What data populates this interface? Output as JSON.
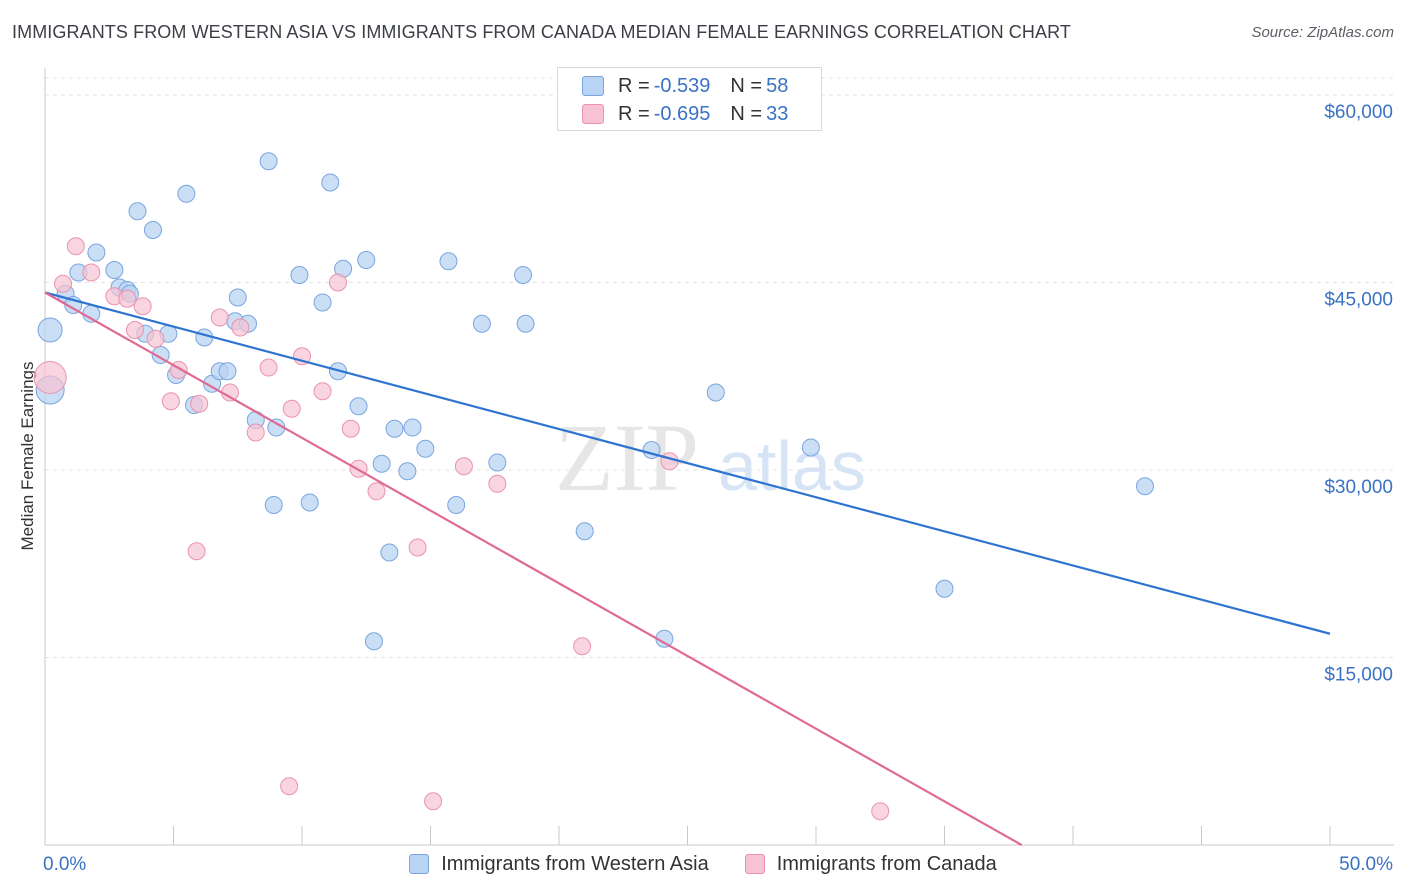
{
  "title": "IMMIGRANTS FROM WESTERN ASIA VS IMMIGRANTS FROM CANADA MEDIAN FEMALE EARNINGS CORRELATION CHART",
  "source": "Source: ZipAtlas.com",
  "watermark": {
    "zip": "ZIP",
    "atlas": "atlas"
  },
  "colors": {
    "blue_fill": "#b8d3f3",
    "blue_stroke": "#7aa6de",
    "blue_line": "#2f74d0",
    "pink_fill": "#f7c3d3",
    "pink_stroke": "#ea93b0",
    "pink_line": "#e06a94",
    "axis_label": "#3a72c4",
    "grid": "#e3e3e3"
  },
  "legend_top": [
    {
      "r_label": "R =",
      "r_value": "-0.539",
      "n_label": "N =",
      "n_value": "58"
    },
    {
      "r_label": "R =",
      "r_value": "-0.695",
      "n_label": "N =",
      "n_value": "33"
    }
  ],
  "legend_bottom": [
    "Immigrants from Western Asia",
    "Immigrants from Canada"
  ],
  "chart_data": {
    "type": "scatter",
    "title": "IMMIGRANTS FROM WESTERN ASIA VS IMMIGRANTS FROM CANADA MEDIAN FEMALE EARNINGS CORRELATION CHART",
    "xlabel": "",
    "ylabel": "Median Female Earnings",
    "xlim": [
      0,
      50
    ],
    "ylim": [
      0,
      62000
    ],
    "x_tick_labels": [
      "0.0%",
      "50.0%"
    ],
    "y_ticks": [
      15000,
      30000,
      45000,
      60000
    ],
    "y_tick_labels": [
      "$15,000",
      "$30,000",
      "$45,000",
      "$60,000"
    ],
    "grid": true,
    "legend_position": "top-center",
    "series": [
      {
        "name": "Immigrants from Western Asia",
        "trend": {
          "x0": 0,
          "y0": 44200,
          "x1": 50,
          "y1": 16900
        },
        "points": [
          [
            0.2,
            41200
          ],
          [
            0.2,
            36400
          ],
          [
            0.8,
            44100
          ],
          [
            1.1,
            43200
          ],
          [
            1.3,
            45800
          ],
          [
            1.8,
            42500
          ],
          [
            2.0,
            47400
          ],
          [
            2.7,
            46000
          ],
          [
            2.9,
            44600
          ],
          [
            3.2,
            44400
          ],
          [
            3.3,
            44100
          ],
          [
            3.6,
            50700
          ],
          [
            3.9,
            40900
          ],
          [
            4.2,
            49200
          ],
          [
            4.5,
            39200
          ],
          [
            4.8,
            40900
          ],
          [
            5.1,
            37600
          ],
          [
            5.5,
            52100
          ],
          [
            5.8,
            35200
          ],
          [
            6.2,
            40600
          ],
          [
            6.5,
            36900
          ],
          [
            6.8,
            37900
          ],
          [
            7.1,
            37900
          ],
          [
            7.4,
            41900
          ],
          [
            7.5,
            43800
          ],
          [
            7.9,
            41700
          ],
          [
            8.2,
            34000
          ],
          [
            8.7,
            54700
          ],
          [
            8.9,
            27200
          ],
          [
            9.0,
            33400
          ],
          [
            9.9,
            45600
          ],
          [
            10.3,
            27400
          ],
          [
            10.8,
            43400
          ],
          [
            11.1,
            53000
          ],
          [
            11.4,
            37900
          ],
          [
            11.6,
            46100
          ],
          [
            12.2,
            35100
          ],
          [
            12.5,
            46800
          ],
          [
            12.8,
            16300
          ],
          [
            13.1,
            30500
          ],
          [
            13.4,
            23400
          ],
          [
            13.6,
            33300
          ],
          [
            14.1,
            29900
          ],
          [
            14.3,
            33400
          ],
          [
            14.8,
            31700
          ],
          [
            15.7,
            46700
          ],
          [
            16.0,
            27200
          ],
          [
            17.0,
            41700
          ],
          [
            17.6,
            30600
          ],
          [
            18.6,
            45600
          ],
          [
            18.7,
            41700
          ],
          [
            21.0,
            25100
          ],
          [
            23.6,
            31600
          ],
          [
            24.1,
            16500
          ],
          [
            26.1,
            36200
          ],
          [
            29.8,
            31800
          ],
          [
            35.0,
            20500
          ],
          [
            42.8,
            28700
          ]
        ]
      },
      {
        "name": "Immigrants from Canada",
        "trend": {
          "x0": 0,
          "y0": 44200,
          "x1": 38,
          "y1": 0
        },
        "points": [
          [
            0.2,
            37400
          ],
          [
            0.7,
            44900
          ],
          [
            1.2,
            47900
          ],
          [
            1.8,
            45800
          ],
          [
            2.7,
            43900
          ],
          [
            3.2,
            43700
          ],
          [
            3.5,
            41200
          ],
          [
            3.8,
            43100
          ],
          [
            4.3,
            40500
          ],
          [
            4.9,
            35500
          ],
          [
            5.2,
            38000
          ],
          [
            5.9,
            23500
          ],
          [
            6.0,
            35300
          ],
          [
            6.8,
            42200
          ],
          [
            7.2,
            36200
          ],
          [
            7.6,
            41400
          ],
          [
            8.2,
            33000
          ],
          [
            8.7,
            38200
          ],
          [
            9.5,
            4700
          ],
          [
            9.6,
            34900
          ],
          [
            10.0,
            39100
          ],
          [
            10.8,
            36300
          ],
          [
            11.4,
            45000
          ],
          [
            11.9,
            33300
          ],
          [
            12.2,
            30100
          ],
          [
            12.9,
            28300
          ],
          [
            14.5,
            23800
          ],
          [
            15.1,
            3500
          ],
          [
            16.3,
            30300
          ],
          [
            17.6,
            28900
          ],
          [
            20.9,
            15900
          ],
          [
            24.3,
            30700
          ],
          [
            32.5,
            2700
          ]
        ]
      }
    ]
  }
}
